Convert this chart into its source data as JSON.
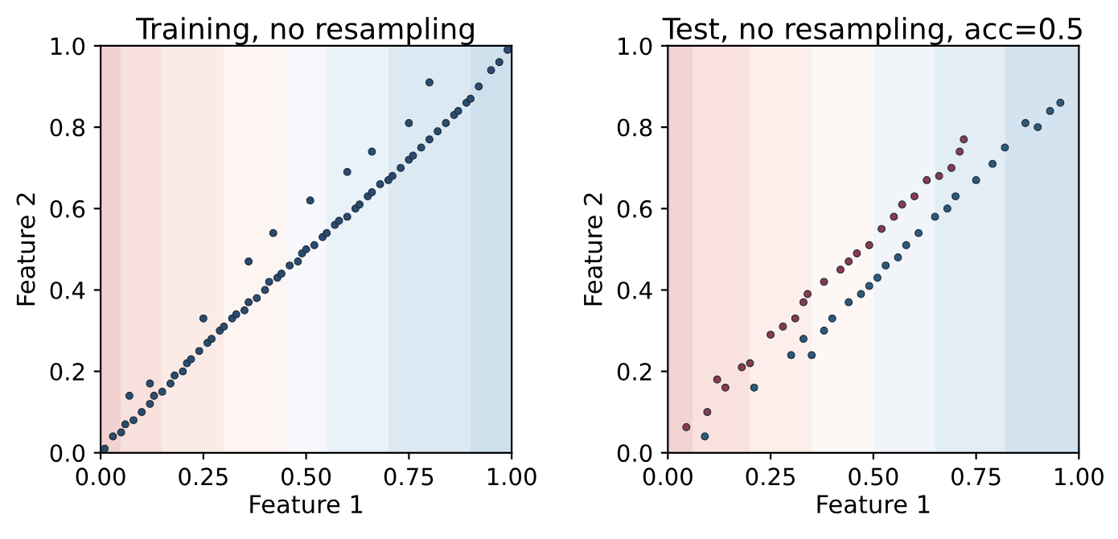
{
  "chart_data": [
    {
      "type": "scatter",
      "title": "Training, no resampling",
      "xlabel": "Feature 1",
      "ylabel": "Feature 2",
      "xlim": [
        0,
        1
      ],
      "ylim": [
        0,
        1
      ],
      "xticks": [
        {
          "value": 0,
          "label": "0.00"
        },
        {
          "value": 0.25,
          "label": "0.25"
        },
        {
          "value": 0.5,
          "label": "0.50"
        },
        {
          "value": 0.75,
          "label": "0.75"
        },
        {
          "value": 1,
          "label": "1.00"
        }
      ],
      "yticks": [
        {
          "value": 0,
          "label": "0.0"
        },
        {
          "value": 0.2,
          "label": "0.2"
        },
        {
          "value": 0.4,
          "label": "0.4"
        },
        {
          "value": 0.6,
          "label": "0.6"
        },
        {
          "value": 0.8,
          "label": "0.8"
        },
        {
          "value": 1,
          "label": "1.0"
        }
      ],
      "grid": false,
      "legend": false,
      "marker": "circle",
      "bands": [
        {
          "axis": "x",
          "from": 0,
          "to": 0.05,
          "color": "#f2d2d0"
        },
        {
          "axis": "x",
          "from": 0.05,
          "to": 0.15,
          "color": "#f8e0dc"
        },
        {
          "axis": "x",
          "from": 0.15,
          "to": 0.3,
          "color": "#fbebe6"
        },
        {
          "axis": "x",
          "from": 0.3,
          "to": 0.45,
          "color": "#fdf5f2"
        },
        {
          "axis": "x",
          "from": 0.45,
          "to": 0.55,
          "color": "#f6f8fb"
        },
        {
          "axis": "x",
          "from": 0.55,
          "to": 0.7,
          "color": "#e9f2f8"
        },
        {
          "axis": "x",
          "from": 0.7,
          "to": 0.9,
          "color": "#dce9f3"
        },
        {
          "axis": "x",
          "from": 0.9,
          "to": 1,
          "color": "#cfe0ed"
        }
      ],
      "series": [
        {
          "color": "#2b4c6f",
          "x": [
            0.01,
            0.03,
            0.05,
            0.06,
            0.08,
            0.1,
            0.12,
            0.13,
            0.15,
            0.17,
            0.18,
            0.2,
            0.21,
            0.22,
            0.24,
            0.26,
            0.27,
            0.29,
            0.3,
            0.32,
            0.33,
            0.35,
            0.36,
            0.38,
            0.4,
            0.41,
            0.43,
            0.44,
            0.46,
            0.48,
            0.49,
            0.5,
            0.52,
            0.54,
            0.55,
            0.57,
            0.58,
            0.6,
            0.62,
            0.63,
            0.65,
            0.66,
            0.68,
            0.7,
            0.71,
            0.73,
            0.75,
            0.76,
            0.78,
            0.8,
            0.82,
            0.84,
            0.86,
            0.87,
            0.89,
            0.9,
            0.92,
            0.95,
            0.97,
            0.99,
            0.07,
            0.12,
            0.25,
            0.36,
            0.42,
            0.51,
            0.6,
            0.66,
            0.75,
            0.8
          ],
          "values": [
            0.01,
            0.04,
            0.05,
            0.07,
            0.08,
            0.1,
            0.12,
            0.14,
            0.15,
            0.17,
            0.19,
            0.2,
            0.22,
            0.23,
            0.25,
            0.27,
            0.28,
            0.3,
            0.31,
            0.33,
            0.34,
            0.35,
            0.37,
            0.38,
            0.4,
            0.42,
            0.43,
            0.44,
            0.46,
            0.47,
            0.49,
            0.5,
            0.51,
            0.53,
            0.54,
            0.56,
            0.57,
            0.58,
            0.6,
            0.61,
            0.63,
            0.64,
            0.66,
            0.67,
            0.68,
            0.7,
            0.72,
            0.73,
            0.75,
            0.77,
            0.79,
            0.81,
            0.83,
            0.84,
            0.86,
            0.87,
            0.9,
            0.94,
            0.96,
            0.99,
            0.14,
            0.17,
            0.33,
            0.47,
            0.54,
            0.62,
            0.69,
            0.74,
            0.81,
            0.91
          ]
        }
      ]
    },
    {
      "type": "scatter",
      "title": "Test, no resampling, acc=0.5",
      "xlabel": "Feature 1",
      "ylabel": "Feature 2",
      "xlim": [
        0,
        1
      ],
      "ylim": [
        0,
        1
      ],
      "xticks": [
        {
          "value": 0,
          "label": "0.00"
        },
        {
          "value": 0.25,
          "label": "0.25"
        },
        {
          "value": 0.5,
          "label": "0.50"
        },
        {
          "value": 0.75,
          "label": "0.75"
        },
        {
          "value": 1,
          "label": "1.00"
        }
      ],
      "yticks": [
        {
          "value": 0,
          "label": "0.0"
        },
        {
          "value": 0.2,
          "label": "0.2"
        },
        {
          "value": 0.4,
          "label": "0.4"
        },
        {
          "value": 0.6,
          "label": "0.6"
        },
        {
          "value": 0.8,
          "label": "0.8"
        },
        {
          "value": 1,
          "label": "1.0"
        }
      ],
      "grid": false,
      "legend": false,
      "marker": "circle",
      "bands": [
        {
          "axis": "x",
          "from": 0,
          "to": 0.06,
          "color": "#f1d3d1"
        },
        {
          "axis": "x",
          "from": 0.06,
          "to": 0.2,
          "color": "#f9e2dd"
        },
        {
          "axis": "x",
          "from": 0.2,
          "to": 0.35,
          "color": "#fcefeb"
        },
        {
          "axis": "x",
          "from": 0.35,
          "to": 0.5,
          "color": "#fdf8f6"
        },
        {
          "axis": "x",
          "from": 0.5,
          "to": 0.65,
          "color": "#f1f5f9"
        },
        {
          "axis": "x",
          "from": 0.65,
          "to": 0.82,
          "color": "#e3edf5"
        },
        {
          "axis": "x",
          "from": 0.82,
          "to": 1,
          "color": "#d3e3ef"
        }
      ],
      "series": [
        {
          "color": "#8c3b4e",
          "x": [
            0.045,
            0.096,
            0.12,
            0.14,
            0.18,
            0.2,
            0.25,
            0.28,
            0.31,
            0.33,
            0.34,
            0.38,
            0.42,
            0.44,
            0.46,
            0.49,
            0.52,
            0.55,
            0.57,
            0.6,
            0.63,
            0.66,
            0.69,
            0.71,
            0.72
          ],
          "values": [
            0.063,
            0.1,
            0.18,
            0.16,
            0.21,
            0.22,
            0.29,
            0.31,
            0.33,
            0.37,
            0.39,
            0.42,
            0.45,
            0.47,
            0.49,
            0.51,
            0.55,
            0.58,
            0.61,
            0.63,
            0.67,
            0.68,
            0.7,
            0.74,
            0.77
          ]
        },
        {
          "color": "#2e5a7a",
          "x": [
            0.09,
            0.21,
            0.3,
            0.33,
            0.35,
            0.38,
            0.4,
            0.44,
            0.47,
            0.49,
            0.51,
            0.53,
            0.56,
            0.58,
            0.61,
            0.65,
            0.68,
            0.7,
            0.75,
            0.79,
            0.82,
            0.87,
            0.9,
            0.93,
            0.955
          ],
          "values": [
            0.04,
            0.16,
            0.24,
            0.28,
            0.24,
            0.3,
            0.33,
            0.37,
            0.39,
            0.41,
            0.43,
            0.46,
            0.48,
            0.51,
            0.54,
            0.58,
            0.6,
            0.63,
            0.67,
            0.71,
            0.75,
            0.81,
            0.8,
            0.84,
            0.86
          ]
        }
      ]
    }
  ]
}
